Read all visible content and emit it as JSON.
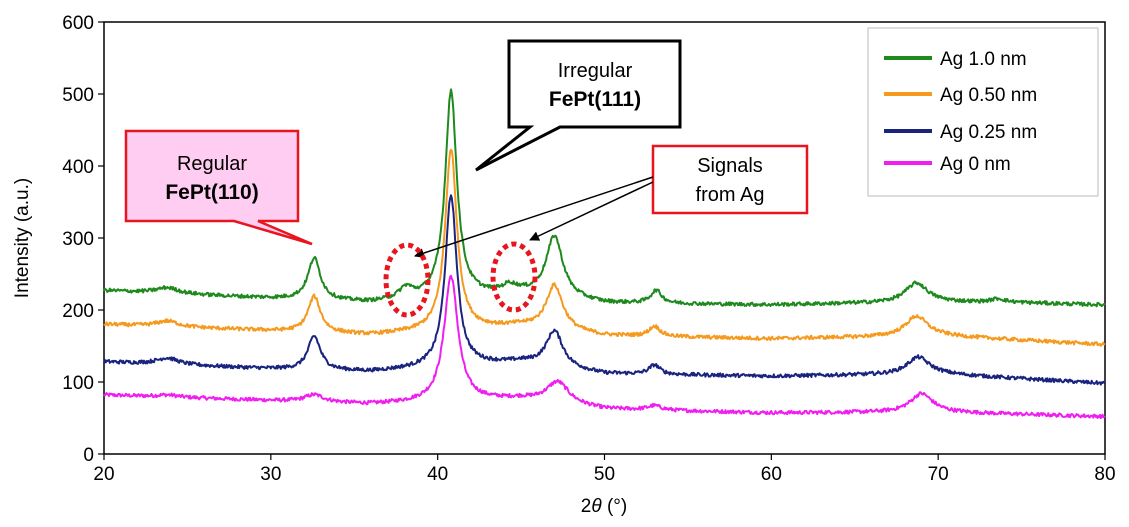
{
  "chart_data": {
    "type": "line",
    "title": "",
    "xlabel_prefix": "2",
    "xlabel_theta": "θ",
    "xlabel_unit": " (°)",
    "ylabel": "Intensity (a.u.)",
    "xlim": [
      20,
      80
    ],
    "ylim": [
      0,
      600
    ],
    "xticks": [
      "20",
      "30",
      "40",
      "50",
      "60",
      "70",
      "80"
    ],
    "yticks": [
      "0",
      "100",
      "200",
      "300",
      "400",
      "500",
      "600"
    ],
    "legend_position": "top-right",
    "series": [
      {
        "name": "Ag 1.0 nm",
        "color": "#1e8a1e",
        "baseline": [
          [
            20,
            227
          ],
          [
            30,
            216
          ],
          [
            36,
            210
          ],
          [
            45,
            222
          ],
          [
            50,
            209
          ],
          [
            60,
            207
          ],
          [
            70,
            211
          ],
          [
            75,
            210
          ],
          [
            80,
            207
          ]
        ],
        "peaks": [
          [
            23.8,
            8,
            0.8
          ],
          [
            32.6,
            58,
            0.45
          ],
          [
            38.1,
            15,
            0.5
          ],
          [
            40.8,
            287,
            0.42
          ],
          [
            44.3,
            10,
            0.5
          ],
          [
            47.0,
            85,
            0.6
          ],
          [
            53.1,
            18,
            0.4
          ],
          [
            68.7,
            27,
            0.8
          ],
          [
            73.6,
            5,
            0.5
          ]
        ]
      },
      {
        "name": "Ag 0.50 nm",
        "color": "#f59a1e",
        "baseline": [
          [
            20,
            180
          ],
          [
            30,
            171
          ],
          [
            36,
            165
          ],
          [
            45,
            177
          ],
          [
            50,
            164
          ],
          [
            60,
            160
          ],
          [
            70,
            164
          ],
          [
            80,
            152
          ]
        ],
        "peaks": [
          [
            23.8,
            8,
            0.8
          ],
          [
            32.6,
            50,
            0.45
          ],
          [
            40.8,
            252,
            0.42
          ],
          [
            47.0,
            62,
            0.6
          ],
          [
            53.0,
            14,
            0.4
          ],
          [
            68.7,
            28,
            0.8
          ]
        ]
      },
      {
        "name": "Ag 0.25 nm",
        "color": "#1a237e",
        "baseline": [
          [
            20,
            128
          ],
          [
            30,
            118
          ],
          [
            36,
            114
          ],
          [
            45,
            127
          ],
          [
            50,
            111
          ],
          [
            60,
            108
          ],
          [
            70,
            111
          ],
          [
            80,
            98
          ]
        ],
        "peaks": [
          [
            23.8,
            9,
            0.8
          ],
          [
            32.6,
            47,
            0.45
          ],
          [
            40.8,
            238,
            0.42
          ],
          [
            47.0,
            50,
            0.6
          ],
          [
            53.0,
            13,
            0.4
          ],
          [
            68.8,
            24,
            0.8
          ]
        ]
      },
      {
        "name": "Ag 0 nm",
        "color": "#f01ef0",
        "baseline": [
          [
            20,
            82
          ],
          [
            30,
            74
          ],
          [
            36,
            69
          ],
          [
            45,
            76
          ],
          [
            50,
            62
          ],
          [
            60,
            57
          ],
          [
            70,
            58
          ],
          [
            80,
            52
          ]
        ],
        "peaks": [
          [
            23.8,
            3,
            0.8
          ],
          [
            32.6,
            10,
            0.7
          ],
          [
            40.8,
            174,
            0.5
          ],
          [
            47.2,
            30,
            0.8
          ],
          [
            53.0,
            6,
            0.5
          ],
          [
            69.0,
            26,
            0.8
          ]
        ]
      }
    ],
    "annotations": {
      "regular_line1": "Regular",
      "regular_line2": "FePt(110)",
      "irregular_line1": "Irregular",
      "irregular_line2": "FePt(111)",
      "signals_line1": "Signals",
      "signals_line2": "from Ag"
    }
  }
}
